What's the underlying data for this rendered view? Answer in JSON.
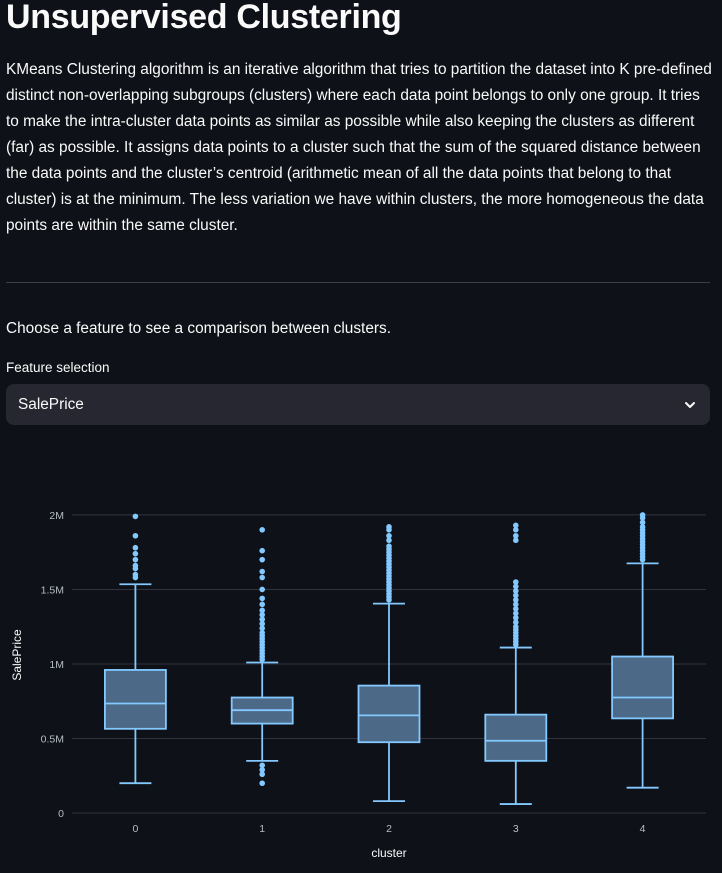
{
  "page": {
    "title": "Unsupervised Clustering",
    "description": "KMeans Clustering algorithm is an iterative algorithm that tries to partition the dataset into K pre-defined distinct non-overlapping subgroups (clusters) where each data point belongs to only one group. It tries to make the intra-cluster data points as similar as possible while also keeping the clusters as different (far) as possible. It assigns data points to a cluster such that the sum of the squared distance between the data points and the cluster’s centroid (arithmetic mean of all the data points that belong to that cluster) is at the minimum. The less variation we have within clusters, the more homogeneous the data points are within the same cluster.",
    "prompt": "Choose a feature to see a comparison between clusters."
  },
  "feature_select": {
    "label": "Feature selection",
    "value": "SalePrice",
    "icon": "chevron-down-icon"
  },
  "colors": {
    "background": "#0e1117",
    "box_fill": "#4c6a87",
    "box_stroke": "#83c9ff",
    "grid": "#31333f",
    "text": "#fafafa",
    "tick_text": "#b8bcc6"
  },
  "chart_data": {
    "type": "box",
    "xlabel": "cluster",
    "ylabel": "SalePrice",
    "ylim": [
      -20000,
      2080000
    ],
    "yticks": [
      {
        "value": 0,
        "label": "0"
      },
      {
        "value": 500000,
        "label": "0.5M"
      },
      {
        "value": 1000000,
        "label": "1M"
      },
      {
        "value": 1500000,
        "label": "1.5M"
      },
      {
        "value": 2000000,
        "label": "2M"
      }
    ],
    "grid": true,
    "categories": [
      "0",
      "1",
      "2",
      "3",
      "4"
    ],
    "boxes": [
      {
        "category": "0",
        "whisker_low": 200000,
        "q1": 565000,
        "median": 735000,
        "q3": 960000,
        "whisker_high": 1535000,
        "outliers": [
          1580000,
          1600000,
          1640000,
          1660000,
          1700000,
          1740000,
          1780000,
          1860000,
          1990000
        ]
      },
      {
        "category": "1",
        "whisker_low": 350000,
        "q1": 600000,
        "median": 690000,
        "q3": 775000,
        "whisker_high": 1010000,
        "outliers": [
          200000,
          260000,
          290000,
          320000,
          1030000,
          1050000,
          1070000,
          1090000,
          1110000,
          1130000,
          1150000,
          1170000,
          1190000,
          1210000,
          1240000,
          1270000,
          1300000,
          1330000,
          1360000,
          1400000,
          1440000,
          1500000,
          1580000,
          1620000,
          1700000,
          1760000,
          1900000
        ]
      },
      {
        "category": "2",
        "whisker_low": 80000,
        "q1": 475000,
        "median": 655000,
        "q3": 855000,
        "whisker_high": 1405000,
        "outliers": [
          1430000,
          1450000,
          1470000,
          1490000,
          1510000,
          1530000,
          1550000,
          1570000,
          1590000,
          1610000,
          1630000,
          1650000,
          1670000,
          1690000,
          1710000,
          1730000,
          1750000,
          1770000,
          1790000,
          1830000,
          1860000,
          1900000,
          1920000
        ]
      },
      {
        "category": "3",
        "whisker_low": 60000,
        "q1": 350000,
        "median": 485000,
        "q3": 660000,
        "whisker_high": 1110000,
        "outliers": [
          1130000,
          1150000,
          1170000,
          1190000,
          1210000,
          1230000,
          1250000,
          1280000,
          1310000,
          1340000,
          1370000,
          1400000,
          1430000,
          1460000,
          1490000,
          1520000,
          1550000,
          1830000,
          1860000,
          1900000,
          1930000
        ]
      },
      {
        "category": "4",
        "whisker_low": 170000,
        "q1": 635000,
        "median": 775000,
        "q3": 1050000,
        "whisker_high": 1675000,
        "outliers": [
          1700000,
          1720000,
          1740000,
          1760000,
          1780000,
          1800000,
          1820000,
          1840000,
          1860000,
          1880000,
          1900000,
          1920000,
          1950000,
          1980000,
          2000000
        ]
      }
    ]
  }
}
